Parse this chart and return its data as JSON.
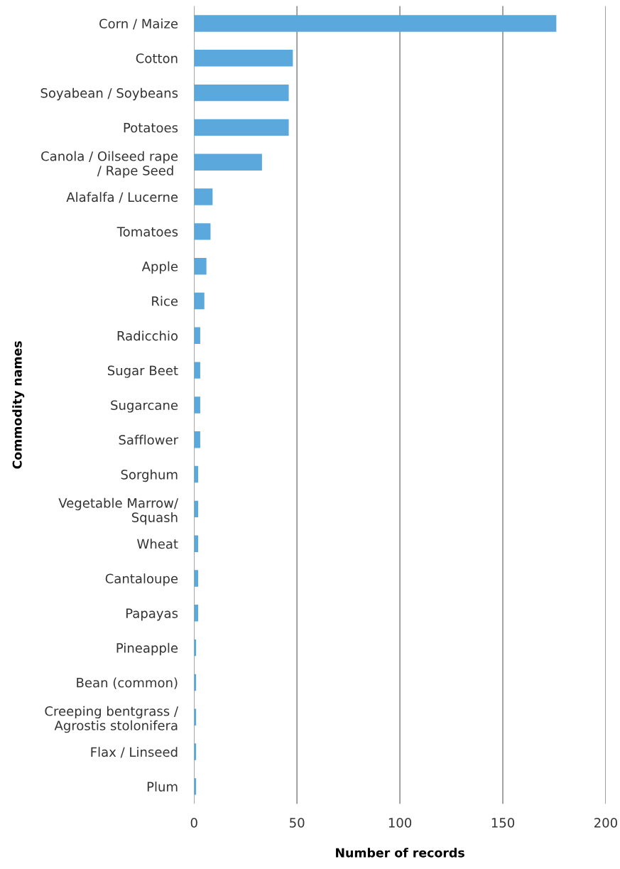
{
  "chart_data": {
    "type": "bar",
    "orientation": "horizontal",
    "xlabel": "Number of records",
    "ylabel": "Commodity names",
    "categories": [
      "Corn / Maize",
      "Cotton",
      "Soyabean / Soybeans",
      "Potatoes",
      "Canola / Oilseed rape\n/ Rape Seed ",
      "Alafalfa / Lucerne",
      "Tomatoes",
      "Apple",
      "Rice",
      "Radicchio",
      "Sugar Beet",
      "Sugarcane",
      "Safflower",
      "Sorghum",
      "Vegetable Marrow/\nSquash",
      "Wheat",
      "Cantaloupe",
      "Papayas",
      "Pineapple",
      "Bean (common)",
      "Creeping bentgrass /\nAgrostis stolonifera",
      "Flax / Linseed",
      "Plum"
    ],
    "values": [
      176,
      48,
      46,
      46,
      33,
      9,
      8,
      6,
      5,
      3,
      3,
      3,
      3,
      2,
      2,
      2,
      2,
      2,
      1,
      1,
      1,
      1,
      1
    ],
    "color": "#5ba8dc",
    "xlim": [
      0,
      200
    ],
    "xticks": [
      0,
      50,
      100,
      150,
      200
    ],
    "grid": "x",
    "legend": false
  }
}
